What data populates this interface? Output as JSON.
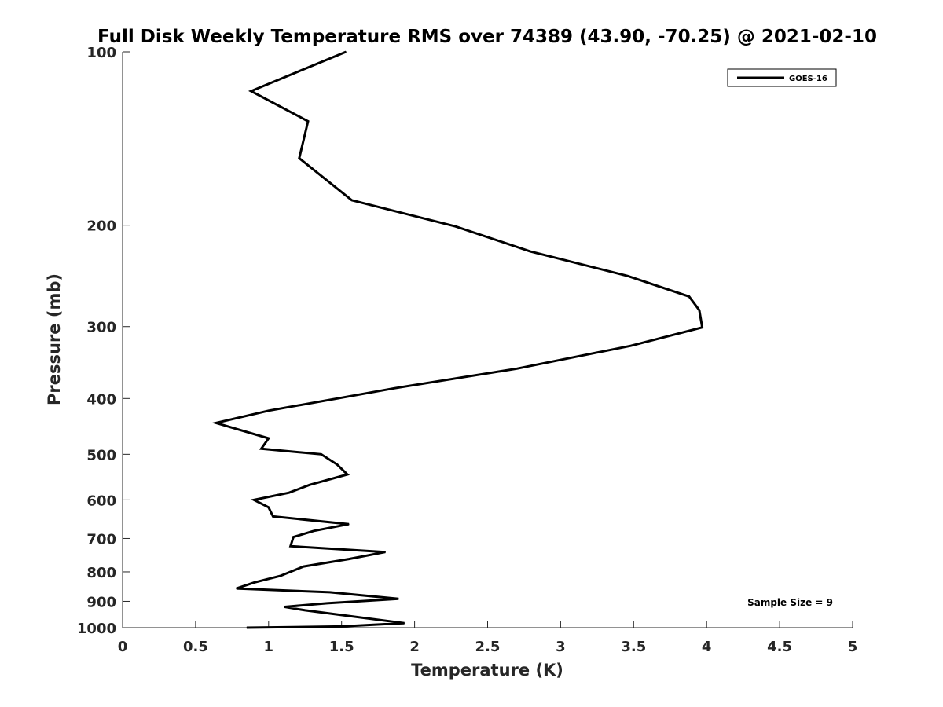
{
  "chart_data": {
    "type": "line",
    "title": "Full Disk Weekly Temperature RMS over 74389 (43.90, -70.25) @ 2021-02-10",
    "xlabel": "Temperature (K)",
    "ylabel": "Pressure (mb)",
    "xlim": [
      0,
      5
    ],
    "ylim": [
      100,
      1000
    ],
    "y_scale": "log",
    "y_reversed": true,
    "grid": false,
    "legend_position": "top-right",
    "x_ticks": [
      "0",
      "0.5",
      "1",
      "1.5",
      "2",
      "2.5",
      "3",
      "3.5",
      "4",
      "4.5",
      "5"
    ],
    "y_ticks": [
      "100",
      "200",
      "300",
      "400",
      "500",
      "600",
      "700",
      "800",
      "900",
      "1000"
    ],
    "series": [
      {
        "name": "GOES-16",
        "color": "#000000",
        "points": [
          [
            1.53,
            100
          ],
          [
            0.88,
            117
          ],
          [
            1.27,
            132
          ],
          [
            1.21,
            153
          ],
          [
            1.57,
            181
          ],
          [
            2.28,
            201
          ],
          [
            2.79,
            222
          ],
          [
            3.46,
            245
          ],
          [
            3.88,
            266
          ],
          [
            3.95,
            281
          ],
          [
            3.97,
            301
          ],
          [
            3.48,
            324
          ],
          [
            2.7,
            355
          ],
          [
            1.86,
            384
          ],
          [
            1.47,
            400
          ],
          [
            1.0,
            420
          ],
          [
            0.64,
            441
          ],
          [
            1.0,
            469
          ],
          [
            0.95,
            489
          ],
          [
            1.36,
            500
          ],
          [
            1.47,
            521
          ],
          [
            1.54,
            542
          ],
          [
            1.28,
            565
          ],
          [
            1.14,
            583
          ],
          [
            0.9,
            600
          ],
          [
            1.0,
            618
          ],
          [
            1.03,
            641
          ],
          [
            1.55,
            661
          ],
          [
            1.31,
            679
          ],
          [
            1.17,
            696
          ],
          [
            1.15,
            722
          ],
          [
            1.8,
            739
          ],
          [
            1.55,
            760
          ],
          [
            1.24,
            783
          ],
          [
            1.08,
            813
          ],
          [
            0.9,
            835
          ],
          [
            0.78,
            855
          ],
          [
            1.42,
            868
          ],
          [
            1.89,
            891
          ],
          [
            1.4,
            907
          ],
          [
            1.11,
            920
          ],
          [
            1.25,
            933
          ],
          [
            1.93,
            982
          ],
          [
            1.5,
            995
          ],
          [
            0.85,
            1000
          ]
        ]
      }
    ],
    "annotation": "Sample Size = 9"
  }
}
